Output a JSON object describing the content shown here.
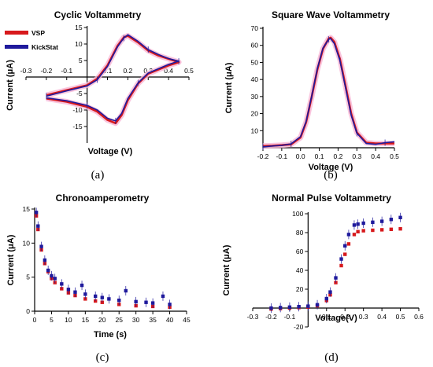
{
  "colors": {
    "vsp": "#d7191c",
    "kickstat": "#1f1a9c",
    "halo": "#f7b6d6",
    "axis": "#000000"
  },
  "chart_data": [
    {
      "id": "cv",
      "type": "line",
      "title": "Cyclic Voltammetry",
      "xlabel": "Voltage (V)",
      "ylabel": "Current (μA)",
      "xlim": [
        -0.3,
        0.5
      ],
      "ylim": [
        -20,
        15
      ],
      "xticks": [
        "-0.3",
        "-0.2",
        "-0.1",
        "0.1",
        "0.2",
        "0.3",
        "0.4",
        "0.5"
      ],
      "xtick_values": [
        -0.3,
        -0.2,
        -0.1,
        0.1,
        0.2,
        0.3,
        0.4,
        0.5
      ],
      "yticks": [
        "15",
        "10",
        "5",
        "-5",
        "-10",
        "-15"
      ],
      "ytick_values": [
        15,
        10,
        5,
        -5,
        -10,
        -15
      ],
      "legend": {
        "placement": "top-left",
        "entries": [
          "VSP",
          "KickStat"
        ]
      },
      "caption": "(a)",
      "series": [
        {
          "name": "VSP",
          "x": [
            -0.2,
            -0.1,
            0.0,
            0.05,
            0.1,
            0.15,
            0.18,
            0.2,
            0.25,
            0.3,
            0.35,
            0.4,
            0.45,
            0.4,
            0.3,
            0.25,
            0.2,
            0.17,
            0.14,
            0.1,
            0.05,
            0.0,
            -0.1,
            -0.2
          ],
          "y": [
            -5.5,
            -4.0,
            -2.5,
            -0.5,
            3.5,
            9.5,
            12.0,
            12.5,
            10.5,
            8.0,
            6.5,
            5.5,
            4.5,
            3.5,
            1.0,
            -2.0,
            -7.0,
            -11.5,
            -14.0,
            -13.0,
            -10.5,
            -9.0,
            -7.5,
            -6.5
          ]
        },
        {
          "name": "KickStat",
          "x": [
            -0.2,
            -0.1,
            0.0,
            0.05,
            0.1,
            0.15,
            0.18,
            0.2,
            0.25,
            0.3,
            0.35,
            0.4,
            0.45,
            0.4,
            0.3,
            0.25,
            0.2,
            0.17,
            0.14,
            0.1,
            0.05,
            0.0,
            -0.1,
            -0.2
          ],
          "y": [
            -5.8,
            -4.2,
            -2.7,
            -0.8,
            3.2,
            9.2,
            11.8,
            12.8,
            10.8,
            8.3,
            6.8,
            5.6,
            4.8,
            3.8,
            1.2,
            -1.8,
            -6.5,
            -11.0,
            -13.3,
            -12.5,
            -10.0,
            -8.6,
            -7.2,
            -6.3
          ]
        }
      ]
    },
    {
      "id": "swv",
      "type": "line",
      "title": "Square Wave Voltammetry",
      "xlabel": "Voltage (V)",
      "ylabel": "Current (μA)",
      "xlim": [
        -0.2,
        0.5
      ],
      "ylim": [
        0,
        70
      ],
      "xticks": [
        "-0.2",
        "-0.1",
        "0.0",
        "0.1",
        "0.2",
        "0.3",
        "0.4",
        "0.5"
      ],
      "xtick_values": [
        -0.2,
        -0.1,
        0.0,
        0.1,
        0.2,
        0.3,
        0.4,
        0.5
      ],
      "yticks": [
        "70",
        "60",
        "50",
        "40",
        "30",
        "20",
        "10"
      ],
      "ytick_values": [
        70,
        60,
        50,
        40,
        30,
        20,
        10
      ],
      "caption": "(b)",
      "series": [
        {
          "name": "VSP",
          "x": [
            -0.2,
            -0.15,
            -0.1,
            -0.05,
            0.0,
            0.03,
            0.06,
            0.09,
            0.12,
            0.15,
            0.16,
            0.18,
            0.21,
            0.24,
            0.27,
            0.3,
            0.35,
            0.4,
            0.45,
            0.5
          ],
          "y": [
            1.0,
            1.2,
            1.5,
            2.0,
            6.0,
            15.0,
            30.0,
            46.0,
            58.0,
            64.0,
            64.5,
            62.0,
            52.0,
            36.0,
            20.0,
            9.0,
            3.0,
            2.5,
            2.5,
            2.5
          ]
        },
        {
          "name": "KickStat",
          "x": [
            -0.2,
            -0.15,
            -0.1,
            -0.05,
            0.0,
            0.03,
            0.06,
            0.09,
            0.12,
            0.15,
            0.16,
            0.18,
            0.21,
            0.24,
            0.27,
            0.3,
            0.35,
            0.4,
            0.45,
            0.5
          ],
          "y": [
            0.5,
            1.0,
            1.4,
            2.3,
            6.5,
            15.5,
            30.5,
            46.5,
            58.5,
            63.5,
            64.0,
            61.0,
            51.0,
            35.0,
            19.0,
            8.5,
            2.5,
            2.0,
            3.0,
            3.5
          ]
        }
      ]
    },
    {
      "id": "ca",
      "type": "scatter",
      "title": "Chronoamperometry",
      "xlabel": "Time (s)",
      "ylabel": "Current (μA)",
      "xlim": [
        0,
        45
      ],
      "ylim": [
        0,
        15
      ],
      "xticks": [
        "0",
        "5",
        "10",
        "15",
        "20",
        "25",
        "30",
        "35",
        "40",
        "45"
      ],
      "xtick_values": [
        0,
        5,
        10,
        15,
        20,
        25,
        30,
        35,
        40,
        45
      ],
      "yticks": [
        "15",
        "10",
        "5",
        "0"
      ],
      "ytick_values": [
        15,
        10,
        5,
        0
      ],
      "caption": "(c)",
      "series": [
        {
          "name": "VSP",
          "x": [
            0.5,
            1,
            2,
            3,
            4,
            5,
            6,
            8,
            10,
            12,
            15,
            18,
            20,
            25,
            30,
            35,
            40
          ],
          "y": [
            14.0,
            12.0,
            9.0,
            7.0,
            5.8,
            4.8,
            4.2,
            3.3,
            2.7,
            2.3,
            1.8,
            1.5,
            1.3,
            1.0,
            0.8,
            0.7,
            0.6
          ]
        },
        {
          "name": "KickStat",
          "x": [
            0.5,
            1,
            2,
            3,
            4,
            5,
            6,
            8,
            10,
            12,
            14,
            15,
            18,
            20,
            22,
            25,
            27,
            30,
            33,
            35,
            38,
            40
          ],
          "y": [
            14.5,
            12.5,
            9.5,
            7.5,
            6.0,
            5.2,
            4.8,
            4.0,
            3.2,
            2.8,
            3.8,
            2.5,
            2.2,
            2.0,
            1.8,
            1.6,
            3.0,
            1.4,
            1.3,
            1.2,
            2.2,
            1.0
          ]
        }
      ]
    },
    {
      "id": "npv",
      "type": "scatter",
      "title": "Normal Pulse Voltammetry",
      "xlabel": "Voltage(V)",
      "ylabel": "Current (μA)",
      "xlim": [
        -0.3,
        0.6
      ],
      "ylim": [
        -20,
        100
      ],
      "xticks": [
        "-0.3",
        "-0.2",
        "-0.1",
        "0.1",
        "0.2",
        "0.3",
        "0.4",
        "0.5",
        "0.6"
      ],
      "xtick_values": [
        -0.3,
        -0.2,
        -0.1,
        0.1,
        0.2,
        0.3,
        0.4,
        0.5,
        0.6
      ],
      "yticks": [
        "100",
        "80",
        "60",
        "40",
        "20",
        "-20"
      ],
      "ytick_values": [
        100,
        80,
        60,
        40,
        20,
        -20
      ],
      "caption": "(d)",
      "series": [
        {
          "name": "VSP",
          "x": [
            -0.2,
            -0.15,
            -0.1,
            -0.05,
            0.0,
            0.05,
            0.1,
            0.12,
            0.15,
            0.18,
            0.2,
            0.22,
            0.25,
            0.27,
            0.3,
            0.35,
            0.4,
            0.45,
            0.5
          ],
          "y": [
            -1.0,
            -0.5,
            0.0,
            0.5,
            1.0,
            2.5,
            8.0,
            14.0,
            27.0,
            45.0,
            57.0,
            68.0,
            78.0,
            81.0,
            82.0,
            82.5,
            83.0,
            83.5,
            84.0
          ]
        },
        {
          "name": "KickStat",
          "x": [
            -0.2,
            -0.15,
            -0.1,
            -0.05,
            0.0,
            0.05,
            0.1,
            0.12,
            0.15,
            0.18,
            0.2,
            0.22,
            0.25,
            0.27,
            0.3,
            0.35,
            0.4,
            0.45,
            0.5
          ],
          "y": [
            0.0,
            0.5,
            1.0,
            1.5,
            2.0,
            3.5,
            10.0,
            17.0,
            32.0,
            52.0,
            66.0,
            78.0,
            88.0,
            89.0,
            90.0,
            91.0,
            92.0,
            94.0,
            96.0
          ]
        }
      ]
    }
  ]
}
